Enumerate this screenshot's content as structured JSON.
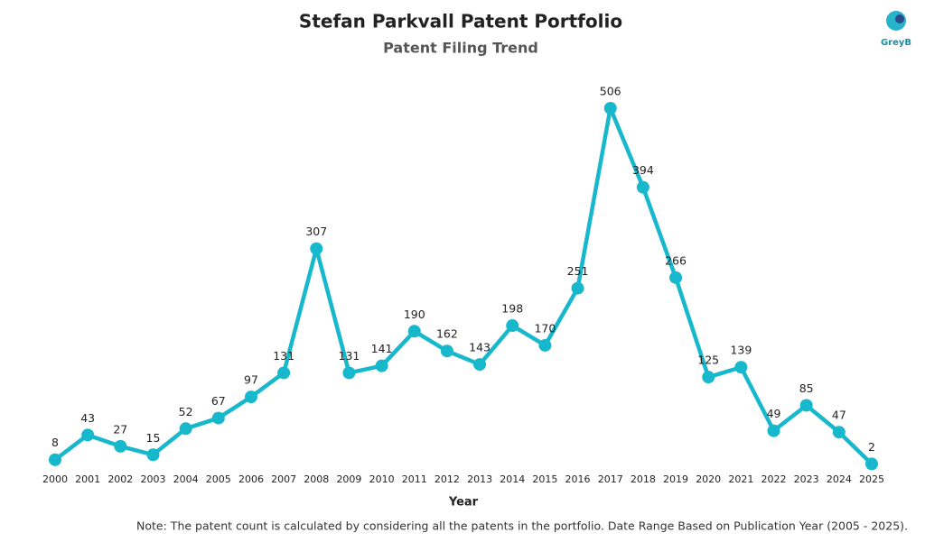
{
  "chart_data": {
    "type": "line",
    "title": "Stefan Parkvall Patent Portfolio",
    "subtitle": "Patent Filing Trend",
    "x_label": "Year",
    "note": "Note: The patent count is calculated by considering all the patents in the portfolio. Date Range Based on Publication Year (2005 - 2025).",
    "logo": "GreyB",
    "color": "#17b8cc",
    "categories": [
      "2000",
      "2001",
      "2002",
      "2003",
      "2004",
      "2005",
      "2006",
      "2007",
      "2008",
      "2009",
      "2010",
      "2011",
      "2012",
      "2013",
      "2014",
      "2015",
      "2016",
      "2017",
      "2018",
      "2019",
      "2020",
      "2021",
      "2022",
      "2023",
      "2024",
      "2025"
    ],
    "values": [
      8,
      43,
      27,
      15,
      52,
      67,
      97,
      131,
      307,
      131,
      141,
      190,
      162,
      143,
      198,
      170,
      251,
      506,
      394,
      266,
      125,
      139,
      49,
      85,
      47,
      2
    ]
  }
}
